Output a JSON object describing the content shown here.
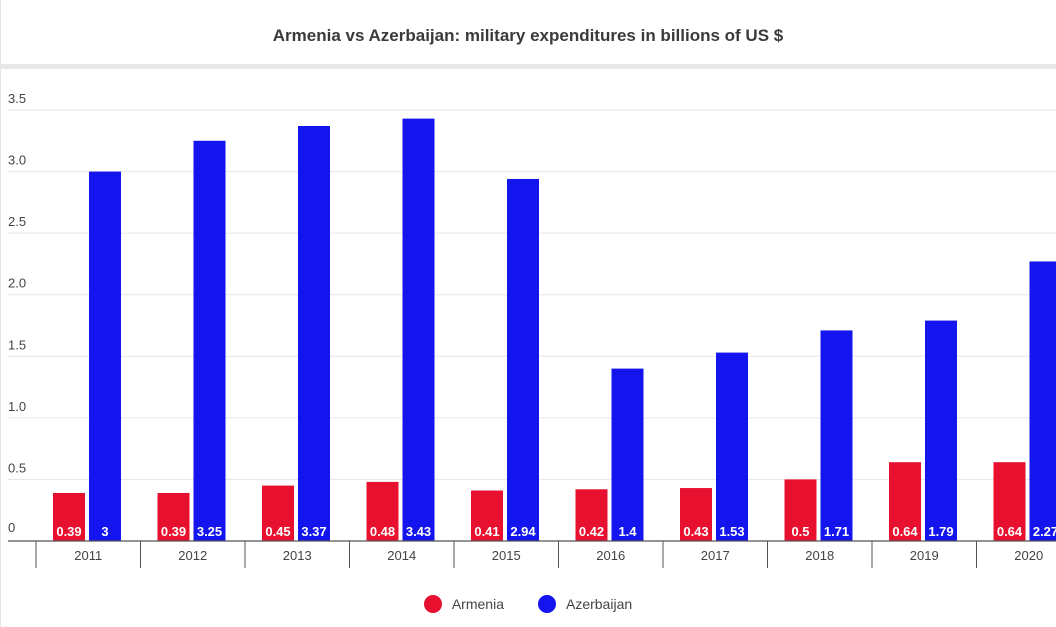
{
  "chart_data": {
    "type": "bar",
    "title": "Armenia vs Azerbaijan: military expenditures in billions of US $",
    "categories": [
      "2011",
      "2012",
      "2013",
      "2014",
      "2015",
      "2016",
      "2017",
      "2018",
      "2019",
      "2020"
    ],
    "series": [
      {
        "name": "Armenia",
        "color": "#e8102f",
        "values": [
          0.39,
          0.39,
          0.45,
          0.48,
          0.41,
          0.42,
          0.43,
          0.5,
          0.64,
          0.64
        ],
        "labels": [
          "0.39",
          "0.39",
          "0.45",
          "0.48",
          "0.41",
          "0.42",
          "0.43",
          "0.5",
          "0.64",
          "0.64"
        ]
      },
      {
        "name": "Azerbaijan",
        "color": "#1414ee",
        "values": [
          3.0,
          3.25,
          3.37,
          3.43,
          2.94,
          1.4,
          1.53,
          1.71,
          1.79,
          2.27
        ],
        "labels": [
          "3",
          "3.25",
          "3.37",
          "3.43",
          "2.94",
          "1.4",
          "1.53",
          "1.71",
          "1.79",
          "2.27"
        ]
      }
    ],
    "yticks": [
      "0",
      "0.5",
      "1.0",
      "1.5",
      "2.0",
      "2.5",
      "3.0",
      "3.5"
    ],
    "ylim": [
      0,
      3.5
    ],
    "grid": true,
    "legend": "bottom-center"
  }
}
